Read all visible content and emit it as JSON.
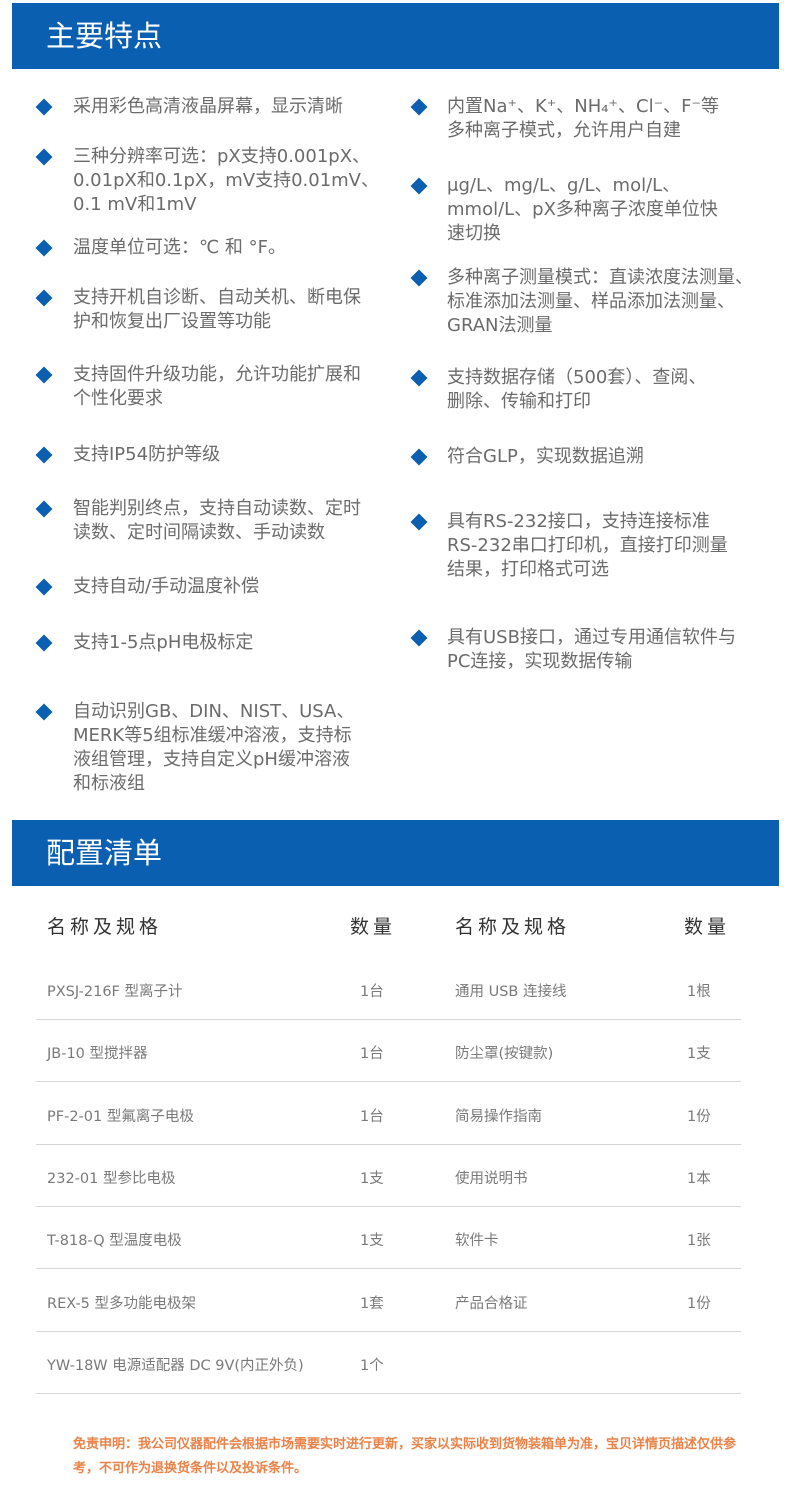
{
  "features": {
    "title": "主要特点",
    "left": [
      "采用彩色高清液晶屏幕，显示清晰",
      "三种分辨率可选：pX支持0.001pX、\n0.01pX和0.1pX，mV支持0.01mV、\n0.1 mV和1mV",
      "温度单位可选：℃ 和 °F。",
      "支持开机自诊断、自动关机、断电保\n护和恢复出厂设置等功能",
      "支持固件升级功能，允许功能扩展和\n个性化要求",
      "支持IP54防护等级",
      "智能判别终点，支持自动读数、定时\n读数、定时间隔读数、手动读数",
      "支持自动/手动温度补偿",
      "支持1-5点pH电极标定",
      "自动识别GB、DIN、NIST、USA、\nMERK等5组标准缓冲溶液，支持标\n液组管理，支持自定义pH缓冲溶液\n和标液组"
    ],
    "right": [
      "内置Na⁺、K⁺、NH₄⁺、Cl⁻、F⁻等\n多种离子模式，允许用户自建",
      "μg/L、mg/L、g/L、mol/L、\nmmol/L、pX多种离子浓度单位快\n速切换",
      "多种离子测量模式：直读浓度法测量、\n标准添加法测量、样品添加法测量、\nGRAN法测量",
      "支持数据存储（500套）、查阅、\n删除、传输和打印",
      "符合GLP，实现数据追溯",
      "具有RS-232接口，支持连接标准\nRS-232串口打印机，直接打印测量\n结果，打印格式可选",
      "具有USB接口，通过专用通信软件与\nPC连接，实现数据传输"
    ]
  },
  "config": {
    "title": "配置清单",
    "headers": [
      "名称及规格",
      "数量",
      "名称及规格",
      "数量"
    ],
    "rows": [
      [
        "PXSJ-216F 型离子计",
        "1台",
        "通用 USB 连接线",
        "1根"
      ],
      [
        "JB-10 型搅拌器",
        "1台",
        "防尘罩(按键款)",
        "1支"
      ],
      [
        "PF-2-01 型氟离子电极",
        "1台",
        "简易操作指南",
        "1份"
      ],
      [
        "232-01 型参比电极",
        "1支",
        "使用说明书",
        "1本"
      ],
      [
        "T-818-Q 型温度电极",
        "1支",
        "软件卡",
        "1张"
      ],
      [
        "REX-5 型多功能电极架",
        "1套",
        "产品合格证",
        "1份"
      ],
      [
        "YW-18W 电源适配器 DC 9V(内正外负)",
        "1个",
        "",
        ""
      ]
    ]
  },
  "disclaimer": "免责申明：我公司仪器配件会根据市场需要实时进行更新，买家以实际收到货物装箱单为准，宝贝详情页描述仅供参考，不可作为退换货条件以及投诉条件。",
  "colors": {
    "accent": "#0b5fb1",
    "disclaimer": "#e8844a"
  }
}
